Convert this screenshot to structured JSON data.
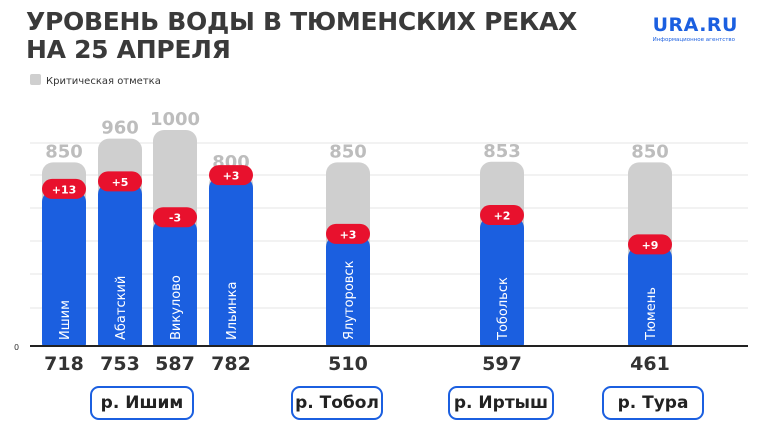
{
  "header": {
    "title_line1": "УРОВЕНЬ ВОДЫ В ТЮМЕНСКИХ РЕКАХ",
    "title_line2": "НА 25 АПРЕЛЯ"
  },
  "logo": {
    "brand": "URA.RU",
    "tagline": "Информационное агентство"
  },
  "legend": {
    "label": "Критическая отметка"
  },
  "chart_data": {
    "type": "bar",
    "categories": [
      "Ишим",
      "Абатский",
      "Викулово",
      "Ильинка",
      "Ялуторовск",
      "Тобольск",
      "Тюмень"
    ],
    "series": [
      {
        "name": "Критическая отметка",
        "values": [
          850,
          960,
          1000,
          800,
          850,
          853,
          850
        ]
      },
      {
        "values": [
          718,
          753,
          587,
          782,
          510,
          597,
          461
        ]
      }
    ],
    "changes": [
      "+13",
      "+5",
      "-3",
      "+3",
      "+3",
      "+2",
      "+9"
    ],
    "groups": [
      {
        "label": "р. Ишим",
        "categories": [
          "Ишим",
          "Абатский",
          "Викулово",
          "Ильинка"
        ]
      },
      {
        "label": "р. Тобол",
        "categories": [
          "Ялуторовск"
        ]
      },
      {
        "label": "р. Иртыш",
        "categories": [
          "Тобольск"
        ]
      },
      {
        "label": "р. Тура",
        "categories": [
          "Тюмень"
        ]
      }
    ],
    "y_zero_label": "0",
    "ylim": [
      0,
      1000
    ],
    "grid": true,
    "legend_position": "top-left",
    "colors": {
      "critical": "#cfcfcf",
      "level": "#1b5fe0",
      "change_badge": "#e8112d"
    }
  }
}
